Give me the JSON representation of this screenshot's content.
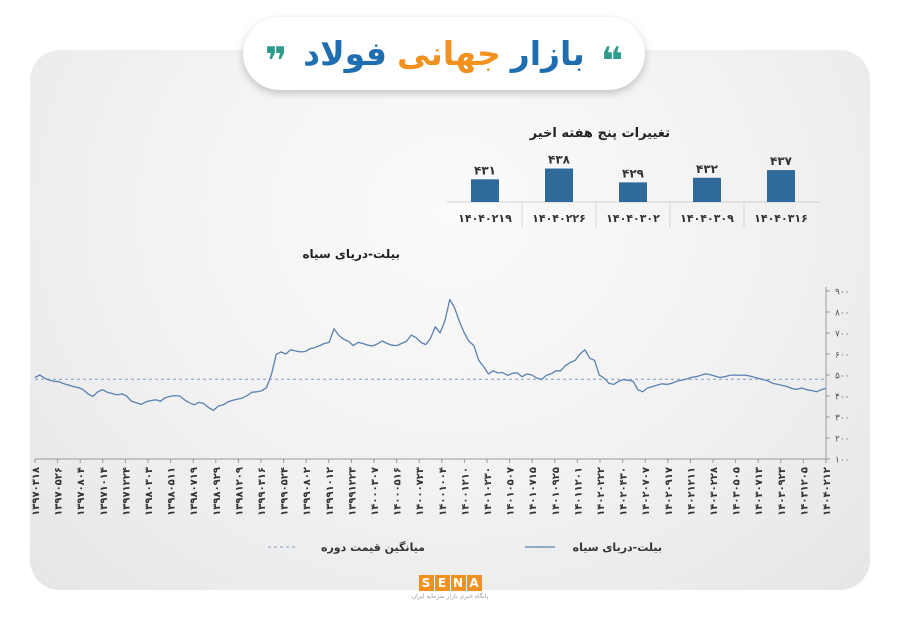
{
  "header": {
    "open_quote": "❝",
    "close_quote": "❞",
    "words": [
      {
        "text": "بازار",
        "color": "#1f6fb0"
      },
      {
        "text": "جهانی",
        "color": "#f3911f"
      },
      {
        "text": "فولاد",
        "color": "#1f6fb0"
      }
    ]
  },
  "colors": {
    "accent_teal": "#2e9c8d",
    "accent_orange": "#f3911f",
    "brand_blue": "#1f6fb0",
    "bar": "#2f6a9a",
    "line": "#5b80b2"
  },
  "chart_data": [
    {
      "type": "bar",
      "title": "تغییرات پنج هفته اخیر",
      "categories": [
        "۱۴۰۴۰۲۱۹",
        "۱۴۰۴۰۲۲۶",
        "۱۴۰۴۰۳۰۲",
        "۱۴۰۴۰۳۰۹",
        "۱۴۰۴۰۳۱۶"
      ],
      "values": [
        431,
        438,
        429,
        432,
        437
      ],
      "value_labels": [
        "۴۳۱",
        "۴۳۸",
        "۴۲۹",
        "۴۳۲",
        "۴۳۷"
      ]
    },
    {
      "type": "line",
      "title": "بیلت-دریای سیاه",
      "ylim": [
        100,
        900
      ],
      "y_ticks": [
        100,
        200,
        300,
        400,
        500,
        600,
        700,
        800,
        900
      ],
      "y_tick_labels": [
        "۱۰۰",
        "۲۰۰",
        "۳۰۰",
        "۴۰۰",
        "۵۰۰",
        "۶۰۰",
        "۷۰۰",
        "۸۰۰",
        "۹۰۰"
      ],
      "x_tick_labels": [
        "۱۳۹۷۰۳۱۸",
        "۱۳۹۷۰۵۲۶",
        "۱۳۹۷۰۸۰۴",
        "۱۳۹۷۱۰۱۴",
        "۱۳۹۷۱۲۲۴",
        "۱۳۹۸۰۳۰۳",
        "۱۳۹۸۰۵۱۱",
        "۱۳۹۸۰۷۱۹",
        "۱۳۹۸۰۹۲۹",
        "۱۳۹۸۱۲۰۹",
        "۱۳۹۹۰۳۱۶",
        "۱۳۹۹۰۵۲۴",
        "۱۳۹۹۰۸۰۲",
        "۱۳۹۹۱۰۱۲",
        "۱۳۹۹۱۲۲۳",
        "۱۴۰۰۰۳۰۷",
        "۱۴۰۰۰۵۱۶",
        "۱۴۰۰۰۷۲۳",
        "۱۴۰۰۱۰۰۴",
        "۱۴۰۰۱۲۱۰",
        "۱۴۰۱۰۲۳۰",
        "۱۴۰۱۰۵۰۷",
        "۱۴۰۱۰۷۱۵",
        "۱۴۰۱۰۹۲۵",
        "۱۴۰۱۱۲۰۱",
        "۱۴۰۲۰۲۲۲",
        "۱۴۰۲۰۴۳۰",
        "۱۴۰۲۰۷۰۷",
        "۱۴۰۲۰۹۱۷",
        "۱۴۰۲۱۲۱۱",
        "۱۴۰۳۰۲۲۸",
        "۱۴۰۳۰۵۰۵",
        "۱۴۰۳۰۷۱۳",
        "۱۴۰۳۰۹۲۳",
        "۱۴۰۳۱۲۰۵",
        "۱۴۰۴۰۲۱۲"
      ],
      "average": 480,
      "series": [
        {
          "name": "بیلت-دریای سیاه",
          "style": "solid",
          "values": [
            488,
            500,
            485,
            475,
            470,
            468,
            458,
            452,
            445,
            440,
            430,
            410,
            398,
            420,
            430,
            418,
            412,
            405,
            410,
            400,
            375,
            368,
            360,
            372,
            378,
            382,
            375,
            392,
            398,
            402,
            400,
            382,
            368,
            358,
            370,
            364,
            345,
            332,
            352,
            358,
            372,
            380,
            385,
            390,
            402,
            418,
            420,
            425,
            440,
            500,
            598,
            610,
            600,
            620,
            615,
            610,
            612,
            625,
            630,
            640,
            650,
            655,
            720,
            688,
            670,
            660,
            640,
            655,
            650,
            642,
            638,
            648,
            662,
            650,
            642,
            640,
            650,
            660,
            690,
            678,
            655,
            645,
            675,
            730,
            700,
            760,
            860,
            820,
            755,
            700,
            660,
            640,
            570,
            540,
            505,
            520,
            510,
            512,
            498,
            508,
            510,
            492,
            505,
            500,
            486,
            478,
            498,
            505,
            520,
            520,
            545,
            560,
            570,
            600,
            620,
            580,
            570,
            500,
            485,
            460,
            455,
            470,
            478,
            475,
            470,
            430,
            420,
            438,
            445,
            452,
            458,
            455,
            460,
            470,
            475,
            480,
            488,
            492,
            498,
            505,
            502,
            495,
            488,
            492,
            498,
            500,
            498,
            500,
            496,
            490,
            484,
            478,
            472,
            460,
            455,
            450,
            445,
            435,
            432,
            438,
            430,
            426,
            420,
            430,
            437
          ]
        },
        {
          "name": "میانگین قیمت دوره",
          "style": "dashed",
          "values": [
            480
          ]
        }
      ]
    }
  ],
  "legend": {
    "series_label": "بیلت-دریای سیاه",
    "average_label": "میانگین قیمت دوره"
  },
  "logo": {
    "letters": [
      "S",
      "E",
      "N",
      "A"
    ],
    "subtitle": "پایگاه خبری بازار سرمایه ایران"
  }
}
